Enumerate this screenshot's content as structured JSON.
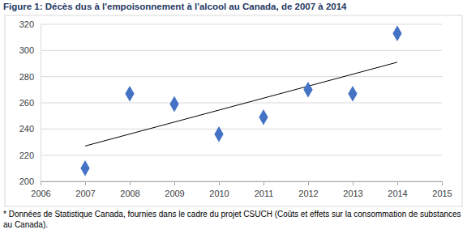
{
  "chart_data": {
    "type": "scatter",
    "title": "Figure 1: Décès dus à l'empoisonnement à l'alcool au Canada, de 2007 à 2014",
    "annotations": [
      "* Données de Statistique Canada, fournies dans le cadre du projet CSUCH (Coûts et effets sur la consommation de substances au Canada)."
    ],
    "x": [
      2007,
      2008,
      2009,
      2010,
      2011,
      2012,
      2013,
      2014
    ],
    "values": [
      210,
      267,
      259,
      236,
      249,
      270,
      267,
      313
    ],
    "color": "#4472C4",
    "marker": "diamond",
    "trendline": {
      "x": [
        2007,
        2014
      ],
      "values": [
        227,
        291
      ]
    },
    "xlim": [
      2006,
      2015
    ],
    "xticks": [
      2006,
      2007,
      2008,
      2009,
      2010,
      2011,
      2012,
      2013,
      2014,
      2015
    ],
    "ylim": [
      200,
      320
    ],
    "yticks": [
      200,
      220,
      240,
      260,
      280,
      300,
      320
    ],
    "grid": true
  }
}
